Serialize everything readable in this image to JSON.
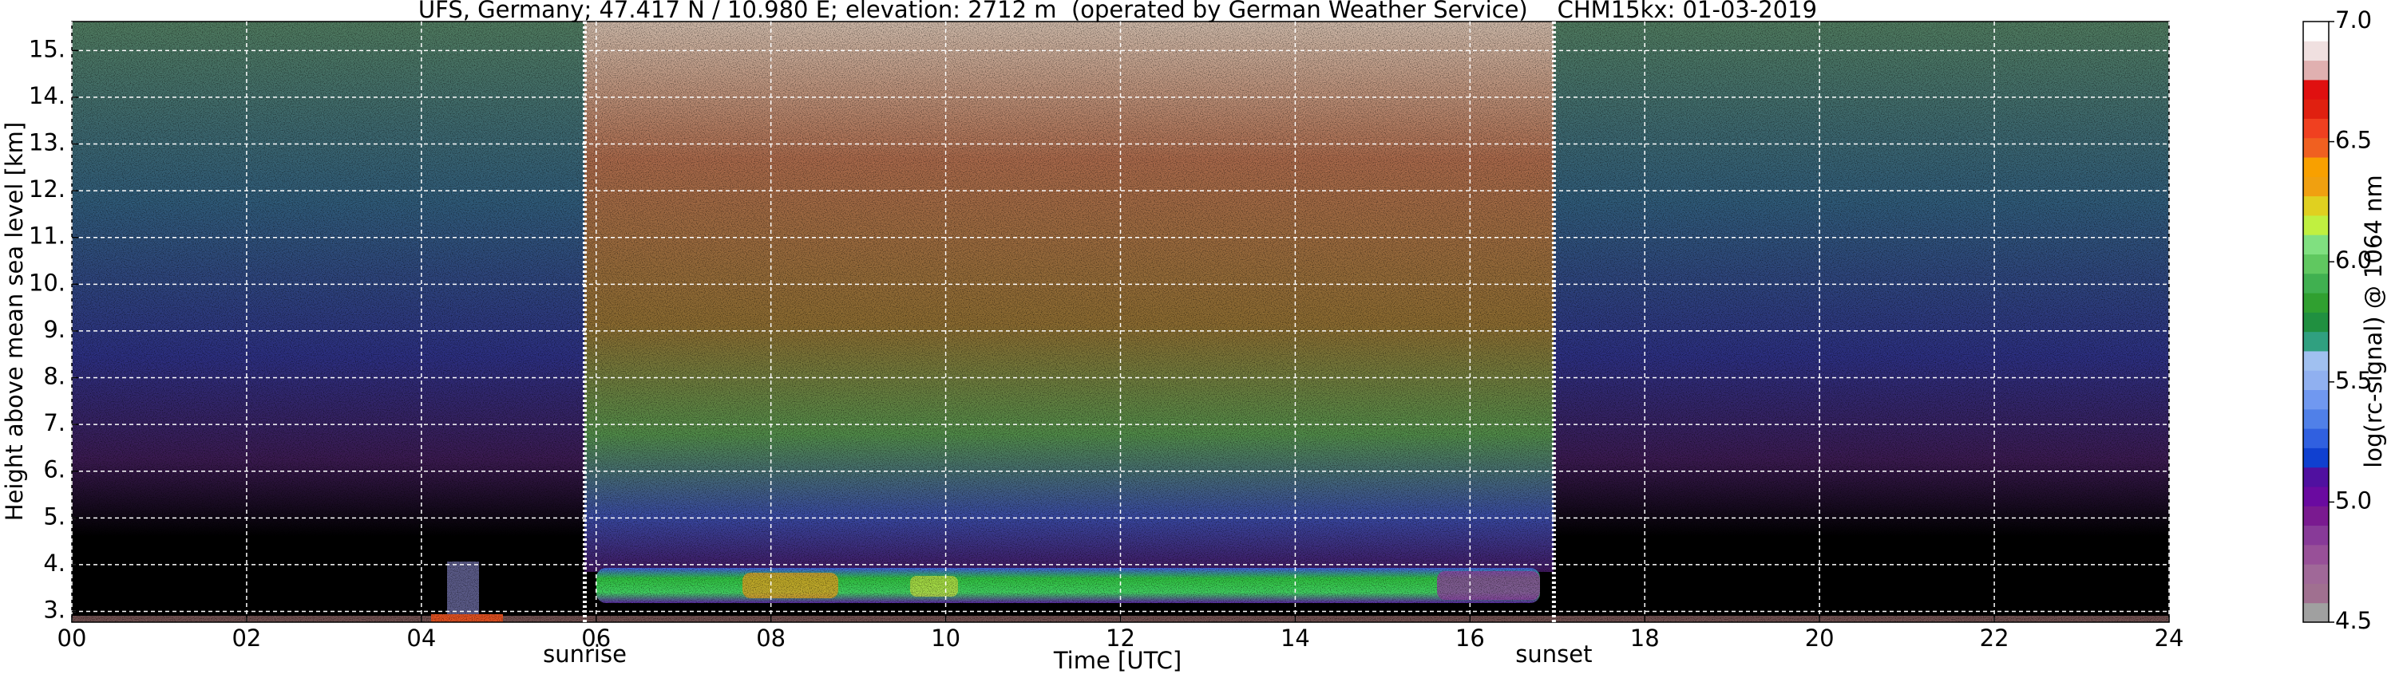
{
  "chart_data": {
    "type": "heatmap",
    "title": "UFS, Germany; 47.417 N / 10.980 E; elevation: 2712 m  (operated by German Weather Service)    CHM15kx: 01-03-2019",
    "x_label": "Time [UTC]",
    "y_label": "Height above mean sea level [km]",
    "xlim": [
      0,
      24
    ],
    "ylim": [
      2.77,
      15.62
    ],
    "xticks": [
      {
        "value": 0,
        "label": "00"
      },
      {
        "value": 2,
        "label": "02"
      },
      {
        "value": 4,
        "label": "04"
      },
      {
        "value": 6,
        "label": "06"
      },
      {
        "value": 8,
        "label": "08"
      },
      10,
      12,
      14,
      16,
      18,
      20,
      22,
      24
    ],
    "yticks": [
      {
        "value": 3,
        "label": "3."
      },
      {
        "value": 4,
        "label": "4."
      },
      {
        "value": 5,
        "label": "5."
      },
      {
        "value": 6,
        "label": "6."
      },
      {
        "value": 7,
        "label": "7."
      },
      {
        "value": 8,
        "label": "8."
      },
      {
        "value": 9,
        "label": "9."
      },
      {
        "value": 10,
        "label": "10."
      },
      {
        "value": 11,
        "label": "11."
      },
      {
        "value": 12,
        "label": "12."
      },
      {
        "value": 13,
        "label": "13."
      },
      {
        "value": 14,
        "label": "14."
      },
      {
        "value": 15,
        "label": "15."
      }
    ],
    "grid": true,
    "annotations": [
      {
        "text": "sunrise",
        "x": 5.87
      },
      {
        "text": "sunset",
        "x": 16.96
      }
    ],
    "colorbar": {
      "label": "log(rc-signal) @ 1064 nm",
      "lim": [
        4.5,
        7.0
      ],
      "ticks": [
        4.5,
        {
          "value": 5,
          "label": "5.0"
        },
        5.5,
        {
          "value": 6,
          "label": "6.0"
        },
        6.5,
        {
          "value": 7,
          "label": "7.0"
        }
      ],
      "colors": [
        "#a0a0a0",
        "#a07090",
        "#a06898",
        "#985098",
        "#883a98",
        "#7a1a90",
        "#6a0aa0",
        "#5010a0",
        "#1040d0",
        "#3060e0",
        "#5080e8",
        "#7098f0",
        "#90b0f0",
        "#a0c0f0",
        "#30a080",
        "#209040",
        "#30a030",
        "#40b050",
        "#60c860",
        "#80e080",
        "#c0f040",
        "#e0d020",
        "#f0a010",
        "#f8a000",
        "#f06020",
        "#f04020",
        "#e02010",
        "#e01010",
        "#e0b0b0",
        "#f0e0e0",
        "#ffffff"
      ]
    }
  }
}
